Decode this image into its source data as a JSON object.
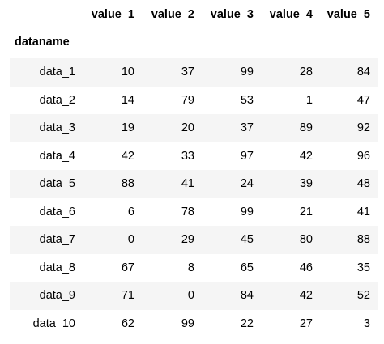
{
  "table": {
    "columns": [
      "value_1",
      "value_2",
      "value_3",
      "value_4",
      "value_5"
    ],
    "index_name": "dataname",
    "rows": [
      {
        "index": "data_1",
        "values": [
          10,
          37,
          99,
          28,
          84
        ]
      },
      {
        "index": "data_2",
        "values": [
          14,
          79,
          53,
          1,
          47
        ]
      },
      {
        "index": "data_3",
        "values": [
          19,
          20,
          37,
          89,
          92
        ]
      },
      {
        "index": "data_4",
        "values": [
          42,
          33,
          97,
          42,
          96
        ]
      },
      {
        "index": "data_5",
        "values": [
          88,
          41,
          24,
          39,
          48
        ]
      },
      {
        "index": "data_6",
        "values": [
          6,
          78,
          99,
          21,
          41
        ]
      },
      {
        "index": "data_7",
        "values": [
          0,
          29,
          45,
          80,
          88
        ]
      },
      {
        "index": "data_8",
        "values": [
          67,
          8,
          65,
          46,
          35
        ]
      },
      {
        "index": "data_9",
        "values": [
          71,
          0,
          84,
          42,
          52
        ]
      },
      {
        "index": "data_10",
        "values": [
          62,
          99,
          22,
          27,
          3
        ]
      }
    ]
  }
}
